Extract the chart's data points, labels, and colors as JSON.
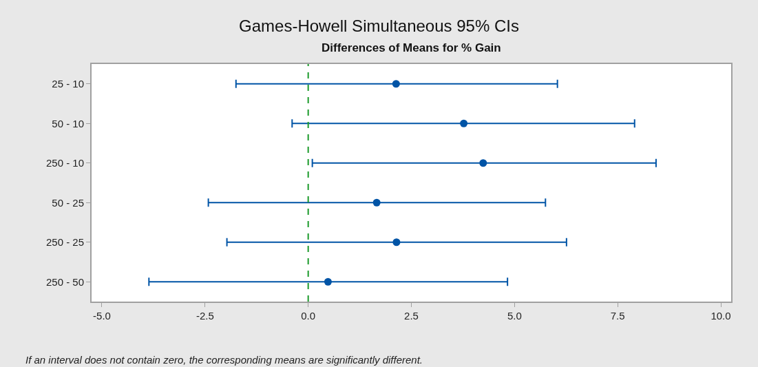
{
  "chart_data": {
    "type": "scatter",
    "orientation": "horizontal",
    "title": "Games-Howell Simultaneous 95% CIs",
    "subtitle": "Differences of Means for % Gain",
    "categories": [
      "25 - 10",
      "50 - 10",
      "250 - 10",
      "50 - 25",
      "250 - 25",
      "250 - 50"
    ],
    "values": [
      2.13,
      3.77,
      4.24,
      1.66,
      2.14,
      0.48
    ],
    "errors": [
      [
        -1.75,
        6.04
      ],
      [
        -0.39,
        7.91
      ],
      [
        0.1,
        8.43
      ],
      [
        -2.42,
        5.75
      ],
      [
        -1.97,
        6.26
      ],
      [
        -3.86,
        4.83
      ]
    ],
    "color": "#0054a6",
    "marker": "circle",
    "grid": false,
    "xlim": [
      -5.25,
      10.25
    ],
    "xticks": [
      {
        "value": -5,
        "label": "-5.0"
      },
      {
        "value": -2.5,
        "label": "-2.5"
      },
      {
        "value": 0,
        "label": "0.0"
      },
      {
        "value": 2.5,
        "label": "2.5"
      },
      {
        "value": 5,
        "label": "5.0"
      },
      {
        "value": 7.5,
        "label": "7.5"
      },
      {
        "value": 10,
        "label": "10.0"
      }
    ],
    "ref_lines": [
      {
        "axis": "x",
        "value": 0,
        "color": "#1a9a2a",
        "line_style": "dashed"
      }
    ],
    "annotations": [
      "If an interval does not contain zero, the corresponding means are significantly different."
    ]
  }
}
